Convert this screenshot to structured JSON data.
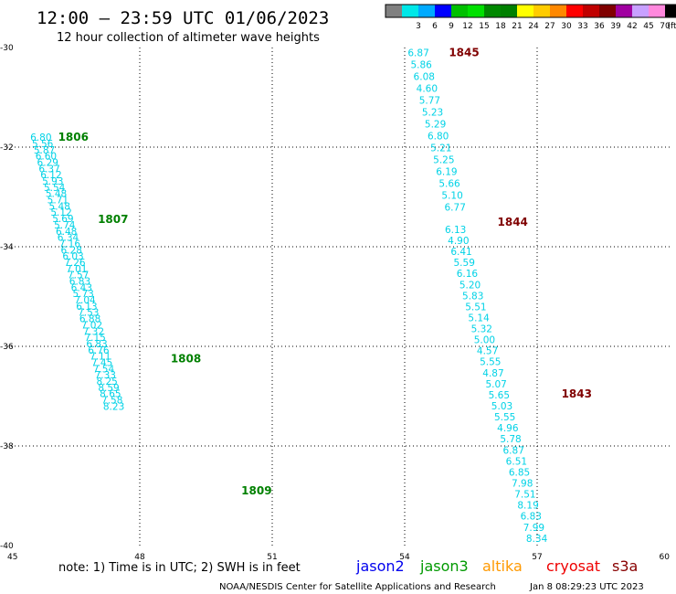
{
  "header": {
    "title": "12:00 – 23:59 UTC 01/06/2023",
    "subtitle": "12 hour collection of altimeter wave heights"
  },
  "color_scale": {
    "unit_label": "(ft)",
    "bins": [
      {
        "label": "",
        "color": "#808080"
      },
      {
        "label": "3",
        "color": "#00e8e8"
      },
      {
        "label": "6",
        "color": "#00aaff"
      },
      {
        "label": "9",
        "color": "#0000ff"
      },
      {
        "label": "12",
        "color": "#00c000"
      },
      {
        "label": "15",
        "color": "#00e000"
      },
      {
        "label": "18",
        "color": "#008800"
      },
      {
        "label": "21",
        "color": "#008000"
      },
      {
        "label": "24",
        "color": "#ffff00"
      },
      {
        "label": "27",
        "color": "#ffcc00"
      },
      {
        "label": "30",
        "color": "#ff8800"
      },
      {
        "label": "33",
        "color": "#ff0000"
      },
      {
        "label": "36",
        "color": "#c00000"
      },
      {
        "label": "39",
        "color": "#800000"
      },
      {
        "label": "42",
        "color": "#a000a0"
      },
      {
        "label": "45",
        "color": "#c8a0ff"
      },
      {
        "label": "70",
        "color": "#ff88dd"
      },
      {
        "label": "",
        "color": "#000000"
      }
    ]
  },
  "chart_data": {
    "type": "scatter",
    "title": "12:00 – 23:59 UTC 01/06/2023",
    "subtitle": "12 hour collection of altimeter wave heights",
    "xlim": [
      45,
      60
    ],
    "ylim": [
      -40,
      -30
    ],
    "x_ticks": [
      {
        "value": 45,
        "label": "45"
      },
      {
        "value": 48,
        "label": "48"
      },
      {
        "value": 51,
        "label": "51"
      },
      {
        "value": 54,
        "label": "54"
      },
      {
        "value": 57,
        "label": "57"
      },
      {
        "value": 60,
        "label": "60"
      }
    ],
    "y_ticks": [
      {
        "value": -30,
        "label": "-30"
      },
      {
        "value": -32,
        "label": "-32"
      },
      {
        "value": -34,
        "label": "-34"
      },
      {
        "value": -36,
        "label": "-36"
      },
      {
        "value": -38,
        "label": "-38"
      },
      {
        "value": -40,
        "label": "-40"
      }
    ],
    "grid": true,
    "unit": "ft",
    "tracks": [
      {
        "start": [
          45.52,
          -31.8
        ],
        "end": [
          47.17,
          -37.2
        ],
        "point_color": "#00d2e6",
        "values": [
          "6.80",
          "5.56",
          "5.87",
          "6.60",
          "6.29",
          "6.37",
          "6.12",
          "5.93",
          "5.54",
          "5.48",
          "5.71",
          "5.48",
          "5.12",
          "5.69",
          "5.74",
          "6.48",
          "6.34",
          "7.16",
          "6.28",
          "6.03",
          "7.26",
          "7.01",
          "7.57",
          "6.83",
          "6.43",
          "5.73",
          "7.04",
          "6.13",
          "7.53",
          "6.88",
          "7.02",
          "7.32",
          "7.15",
          "6.83",
          "6.76",
          "7.11",
          "7.45",
          "7.54",
          "7.33",
          "8.25",
          "8.59",
          "8.65",
          "7.58",
          "8.23"
        ]
      },
      {
        "start": [
          48.34,
          -37.2
        ],
        "end": [
          49.2,
          -39.58
        ],
        "point_color": "#00d2e6",
        "values": []
      },
      {
        "start": [
          54.07,
          -30.1
        ],
        "end": [
          54.9,
          -33.2
        ],
        "point_color": "#00d2e6",
        "values": [
          "6.87",
          "5.86",
          "6.08",
          "4.60",
          "5.77",
          "5.23",
          "5.29",
          "6.80",
          "5.21",
          "5.25",
          "6.19",
          "5.66",
          "5.10",
          "6.77"
        ]
      },
      {
        "start": [
          54.91,
          -33.65
        ],
        "end": [
          56.75,
          -39.85
        ],
        "point_color": "#00d2e6",
        "values": [
          "6.13",
          "4.90",
          "6.41",
          "5.59",
          "6.16",
          "5.20",
          "5.83",
          "5.51",
          "5.14",
          "5.32",
          "5.00",
          "4.57",
          "5.55",
          "4.87",
          "5.07",
          "5.65",
          "5.03",
          "5.55",
          "4.96",
          "5.78",
          "6.87",
          "6.51",
          "6.85",
          "7.98",
          "7.51",
          "8.19",
          "6.83",
          "7.99",
          "8.34"
        ]
      }
    ],
    "hour_labels": [
      {
        "label": "1806",
        "x": 46.15,
        "y": -31.8,
        "color": "#008000"
      },
      {
        "label": "1807",
        "x": 47.05,
        "y": -33.45,
        "color": "#008000"
      },
      {
        "label": "1808",
        "x": 48.7,
        "y": -36.25,
        "color": "#008000"
      },
      {
        "label": "1809",
        "x": 50.3,
        "y": -38.9,
        "color": "#008000"
      },
      {
        "label": "1845",
        "x": 55.0,
        "y": -30.1,
        "color": "#800000"
      },
      {
        "label": "1844",
        "x": 56.1,
        "y": -33.5,
        "color": "#800000"
      },
      {
        "label": "1843",
        "x": 57.55,
        "y": -36.95,
        "color": "#800000"
      }
    ]
  },
  "note": "note:  1) Time is in UTC; 2) SWH is in feet",
  "legend": [
    {
      "label": "jason2",
      "color": "#0000ee"
    },
    {
      "label": "jason3",
      "color": "#009900"
    },
    {
      "label": "altika",
      "color": "#ff9900"
    },
    {
      "label": "cryosat",
      "color": "#ee0000"
    },
    {
      "label": "s3a",
      "color": "#880000"
    }
  ],
  "footer": {
    "credit": "NOAA/NESDIS Center for Satellite Applications and Research",
    "timestamp": "Jan  8 08:29:23 UTC 2023"
  }
}
